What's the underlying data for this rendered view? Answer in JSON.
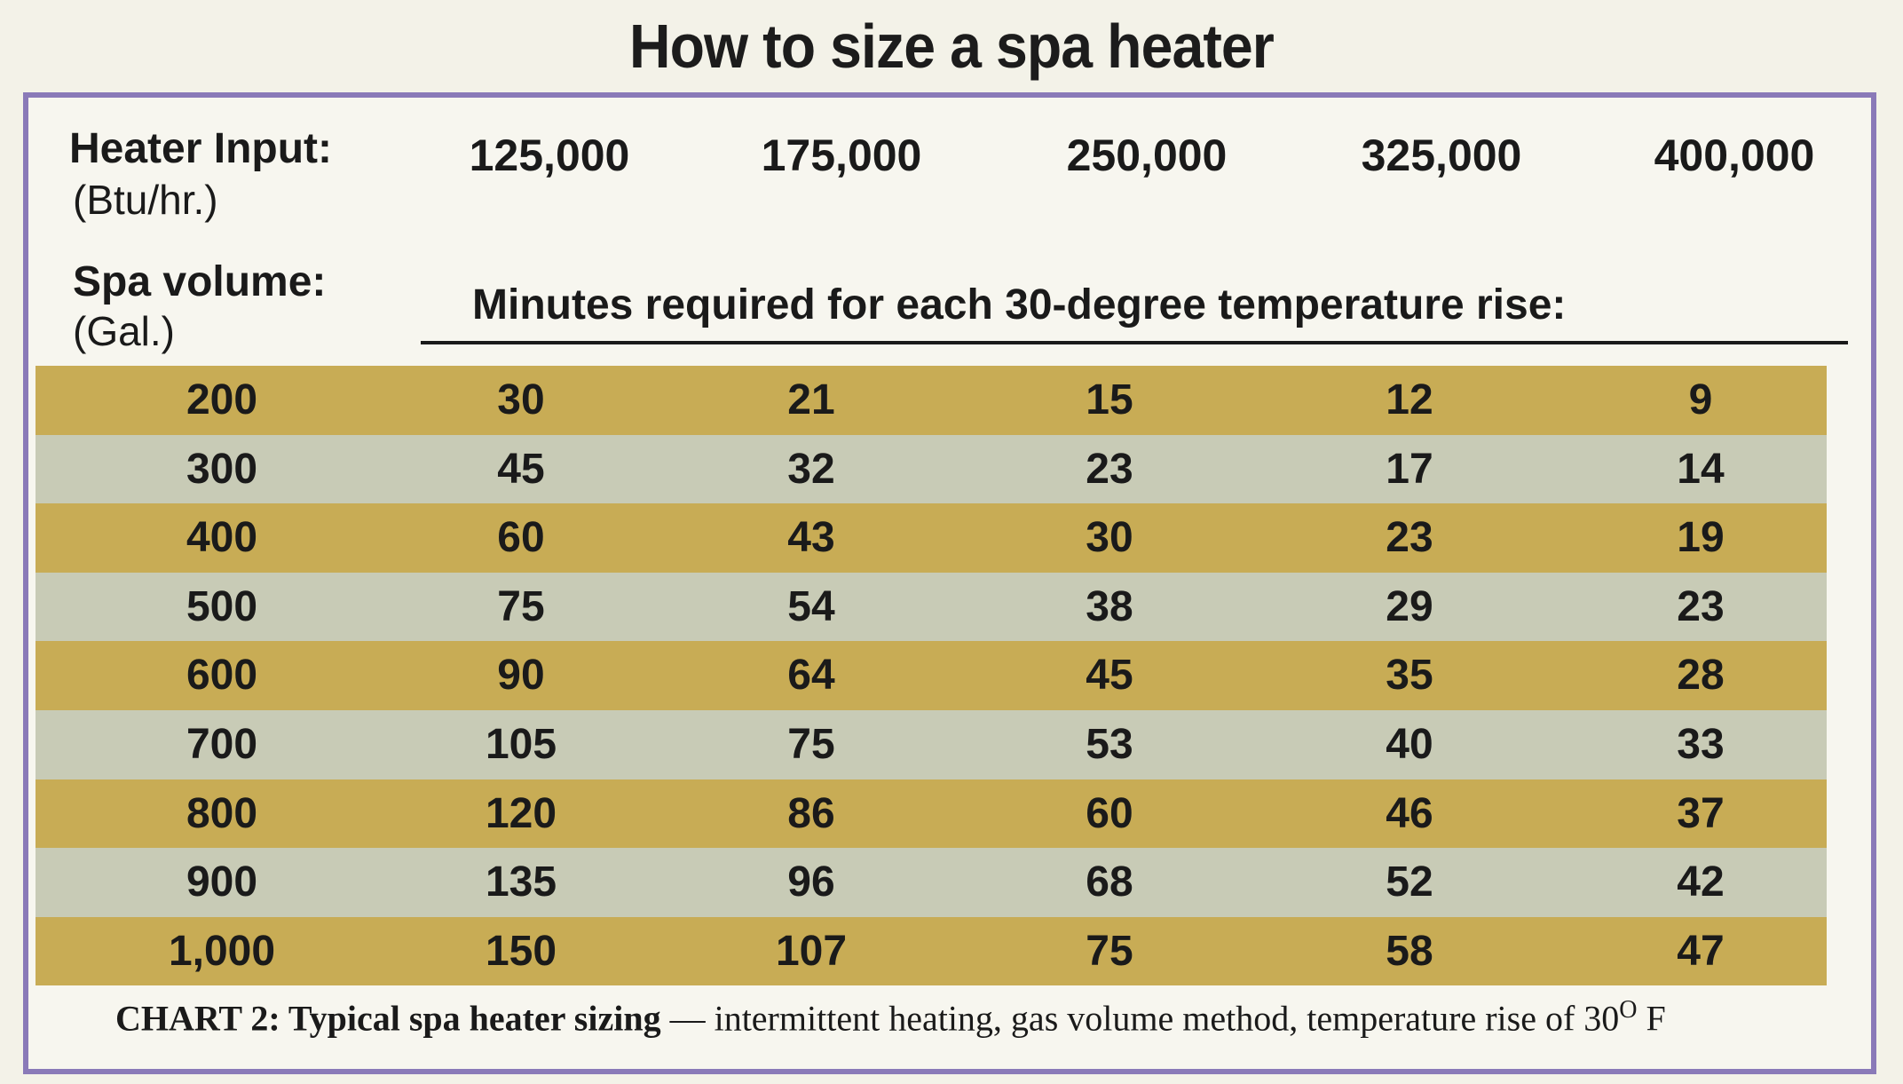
{
  "title": "How to size a spa heater",
  "header": {
    "input_label": "Heater Input:",
    "input_unit": "(Btu/hr.)",
    "volume_label": "Spa volume:",
    "volume_unit": "(Gal.)",
    "minutes_label": "Minutes required for each 30-degree temperature rise:",
    "inputs": [
      "125,000",
      "175,000",
      "250,000",
      "325,000",
      "400,000"
    ]
  },
  "table": {
    "row_colors": [
      "#c8ac55",
      "#c8cbb6"
    ],
    "rows": [
      {
        "volume": "200",
        "values": [
          "30",
          "21",
          "15",
          "12",
          "9"
        ]
      },
      {
        "volume": "300",
        "values": [
          "45",
          "32",
          "23",
          "17",
          "14"
        ]
      },
      {
        "volume": "400",
        "values": [
          "60",
          "43",
          "30",
          "23",
          "19"
        ]
      },
      {
        "volume": "500",
        "values": [
          "75",
          "54",
          "38",
          "29",
          "23"
        ]
      },
      {
        "volume": "600",
        "values": [
          "90",
          "64",
          "45",
          "35",
          "28"
        ]
      },
      {
        "volume": "700",
        "values": [
          "105",
          "75",
          "53",
          "40",
          "33"
        ]
      },
      {
        "volume": "800",
        "values": [
          "120",
          "86",
          "60",
          "46",
          "37"
        ]
      },
      {
        "volume": "900",
        "values": [
          "135",
          "96",
          "68",
          "52",
          "42"
        ]
      },
      {
        "volume": "1,000",
        "values": [
          "150",
          "107",
          "75",
          "58",
          "47"
        ]
      }
    ]
  },
  "caption": {
    "lead": "CHART 2: Typical spa heater sizing",
    "rest": " — intermittent heating, gas volume method, temperature rise of 30",
    "degree": "O",
    "unit": " F"
  }
}
